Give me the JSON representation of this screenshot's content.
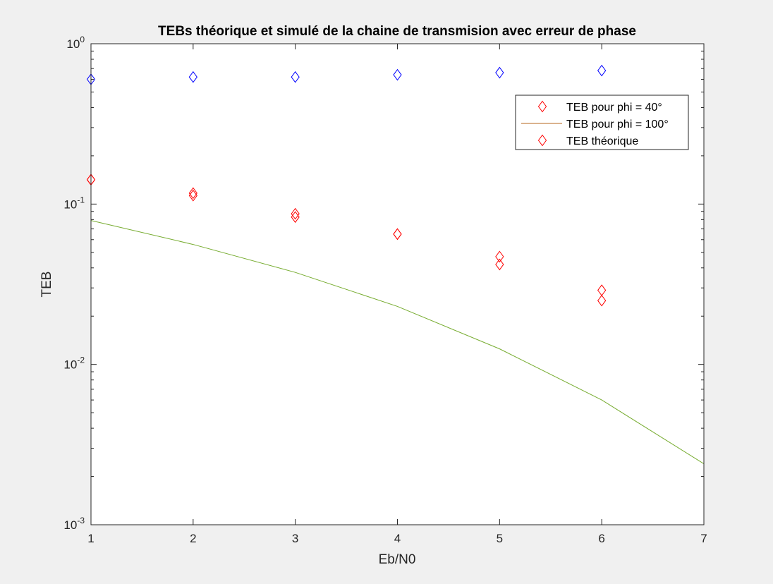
{
  "colors": {
    "figure_bg": "#f0f0f0",
    "axes_bg": "#ffffff",
    "axis": "#262626",
    "red": "#ff0000",
    "blue": "#0000ff",
    "green": "#77ac30",
    "legend_line": "#b5651d"
  },
  "chart_data": {
    "type": "scatter",
    "title": "TEBs théorique et simulé de la chaine de transmision avec erreur de phase",
    "xlabel": "Eb/N0",
    "ylabel": "TEB",
    "xlim": [
      1,
      7
    ],
    "ylim": [
      0.001,
      1
    ],
    "yscale": "log",
    "grid": false,
    "legend_location": "top-right",
    "x_ticks": [
      "1",
      "2",
      "3",
      "4",
      "5",
      "6",
      "7"
    ],
    "y_ticks": [
      {
        "base": "10",
        "exp": "-3",
        "value": 0.001
      },
      {
        "base": "10",
        "exp": "-2",
        "value": 0.01
      },
      {
        "base": "10",
        "exp": "-1",
        "value": 0.1
      },
      {
        "base": "10",
        "exp": "0",
        "value": 1
      }
    ],
    "legend": [
      {
        "label": "TEB pour phi = 40°",
        "marker": "diamond",
        "color": "#ff0000"
      },
      {
        "label": "TEB pour phi = 100°",
        "marker": "line",
        "color": "#b5651d"
      },
      {
        "label": "TEB théorique",
        "marker": "diamond",
        "color": "#ff0000"
      }
    ],
    "series": [
      {
        "marker": "diamond",
        "color": "#ff0000",
        "x": [
          1,
          2,
          3,
          4,
          5,
          6
        ],
        "y": [
          0.142,
          0.113,
          0.083,
          0.065,
          0.042,
          0.025
        ]
      },
      {
        "marker": "diamond",
        "color": "#0000ff",
        "x": [
          1,
          2,
          3,
          4,
          5,
          6
        ],
        "y": [
          0.6,
          0.62,
          0.62,
          0.64,
          0.66,
          0.68
        ]
      },
      {
        "marker": "diamond",
        "color": "#ff0000",
        "x": [
          1,
          2,
          3,
          4,
          5,
          6
        ],
        "y": [
          0.142,
          0.117,
          0.087,
          0.065,
          0.047,
          0.029
        ]
      },
      {
        "marker": "line",
        "color": "#77ac30",
        "x": [
          1,
          2,
          3,
          4,
          5,
          6,
          7
        ],
        "y": [
          0.079,
          0.056,
          0.0375,
          0.023,
          0.0125,
          0.006,
          0.0024
        ]
      }
    ]
  }
}
